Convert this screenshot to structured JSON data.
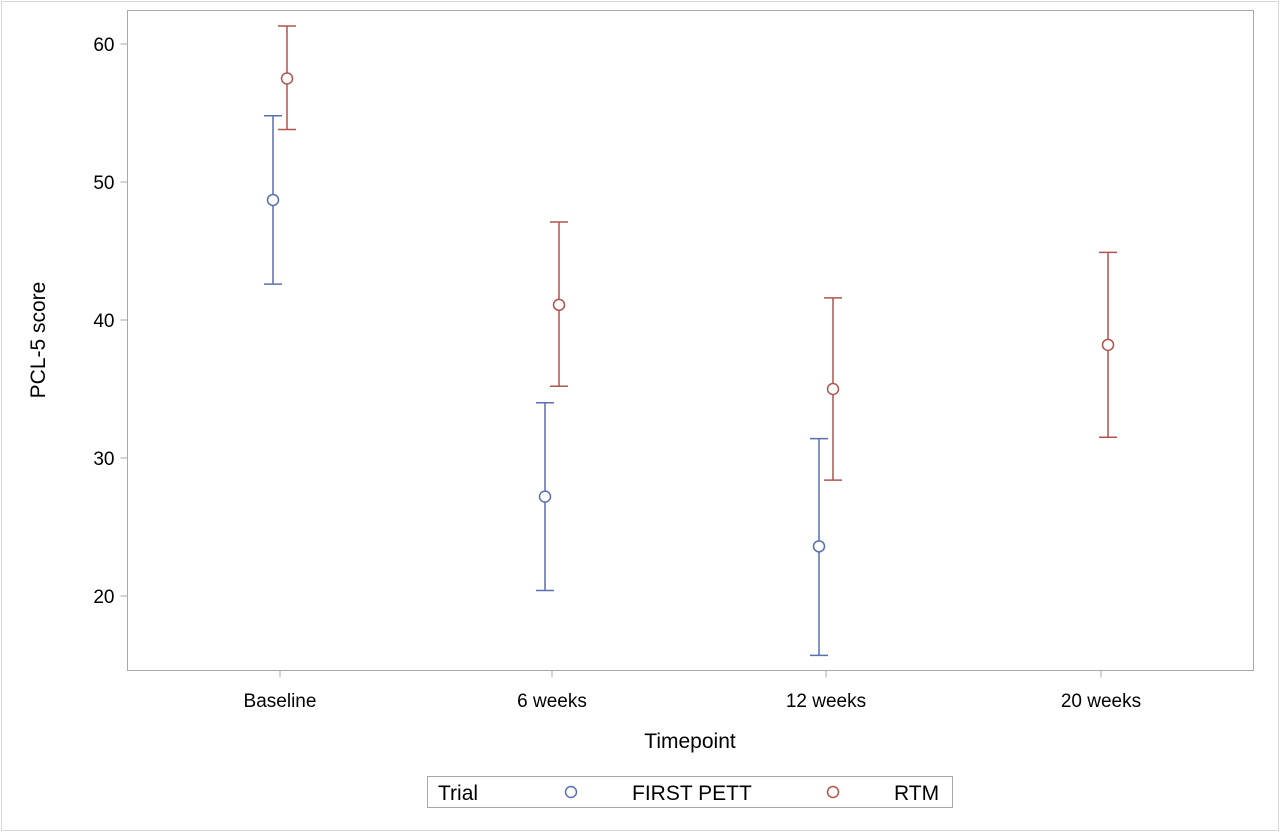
{
  "chart_data": {
    "type": "scatter",
    "subtype": "point-with-error-bars",
    "xlabel": "Timepoint",
    "ylabel": "PCL-5 score",
    "categories": [
      "Baseline",
      "6 weeks",
      "12 weeks",
      "20 weeks"
    ],
    "yticks": [
      "20",
      "30",
      "40",
      "50",
      "60"
    ],
    "ylim": [
      14.7,
      62.5
    ],
    "grid": false,
    "legend": {
      "title": "Trial",
      "placement": "bottom-center",
      "entries": [
        "FIRST PETT",
        "RTM"
      ]
    },
    "series": [
      {
        "name": "FIRST PETT",
        "color": "#5a6fb0",
        "points": [
          {
            "category": "Baseline",
            "y": 48.7,
            "lower": 42.6,
            "upper": 54.8
          },
          {
            "category": "6 weeks",
            "y": 27.2,
            "lower": 20.4,
            "upper": 34.0
          },
          {
            "category": "12 weeks",
            "y": 23.6,
            "lower": 15.7,
            "upper": 31.4
          }
        ]
      },
      {
        "name": "RTM",
        "color": "#b0544d",
        "points": [
          {
            "category": "Baseline",
            "y": 57.5,
            "lower": 53.8,
            "upper": 61.3
          },
          {
            "category": "6 weeks",
            "y": 41.1,
            "lower": 35.2,
            "upper": 47.1
          },
          {
            "category": "12 weeks",
            "y": 35.0,
            "lower": 28.4,
            "upper": 41.6
          },
          {
            "category": "20 weeks",
            "y": 38.2,
            "lower": 31.5,
            "upper": 44.9
          }
        ]
      }
    ]
  }
}
